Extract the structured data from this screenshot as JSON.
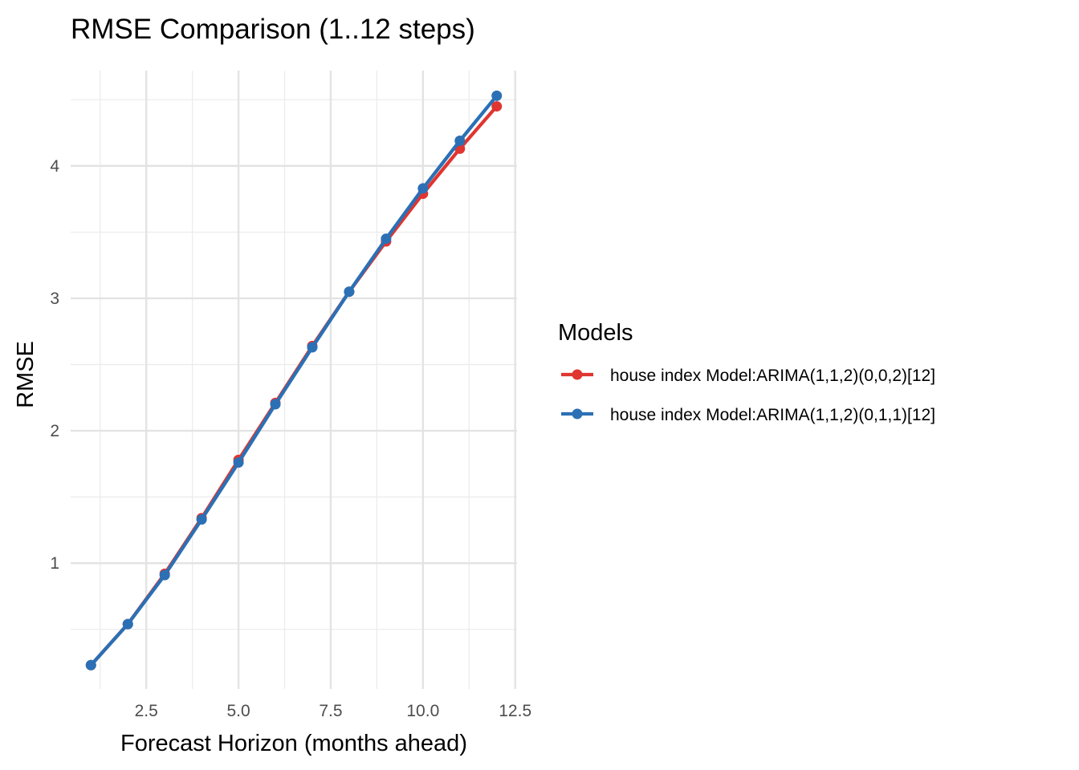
{
  "chart_data": {
    "type": "line",
    "title": "RMSE Comparison (1..12 steps)",
    "xlabel": "Forecast Horizon (months ahead)",
    "ylabel": "RMSE",
    "x": [
      1,
      2,
      3,
      4,
      5,
      6,
      7,
      8,
      9,
      10,
      11,
      12
    ],
    "xlim": [
      0.45,
      12.55
    ],
    "ylim": [
      0.05,
      4.72
    ],
    "x_ticks": [
      2.5,
      5.0,
      7.5,
      10.0,
      12.5
    ],
    "x_tick_labels": [
      "2.5",
      "5.0",
      "7.5",
      "10.0",
      "12.5"
    ],
    "y_ticks": [
      1,
      2,
      3,
      4
    ],
    "y_tick_labels": [
      "1",
      "2",
      "3",
      "4"
    ],
    "grid": true,
    "legend": {
      "title": "Models",
      "position": "right"
    },
    "series": [
      {
        "name": "house index Model:ARIMA(1,1,2)(0,0,2)[12]",
        "color": "#e03530",
        "values": [
          0.23,
          0.54,
          0.92,
          1.34,
          1.78,
          2.21,
          2.64,
          3.05,
          3.43,
          3.79,
          4.13,
          4.45
        ]
      },
      {
        "name": "house index Model:ARIMA(1,1,2)(0,1,1)[12]",
        "color": "#2b70b5",
        "values": [
          0.23,
          0.54,
          0.91,
          1.33,
          1.76,
          2.2,
          2.63,
          3.05,
          3.45,
          3.83,
          4.19,
          4.53
        ]
      }
    ]
  }
}
